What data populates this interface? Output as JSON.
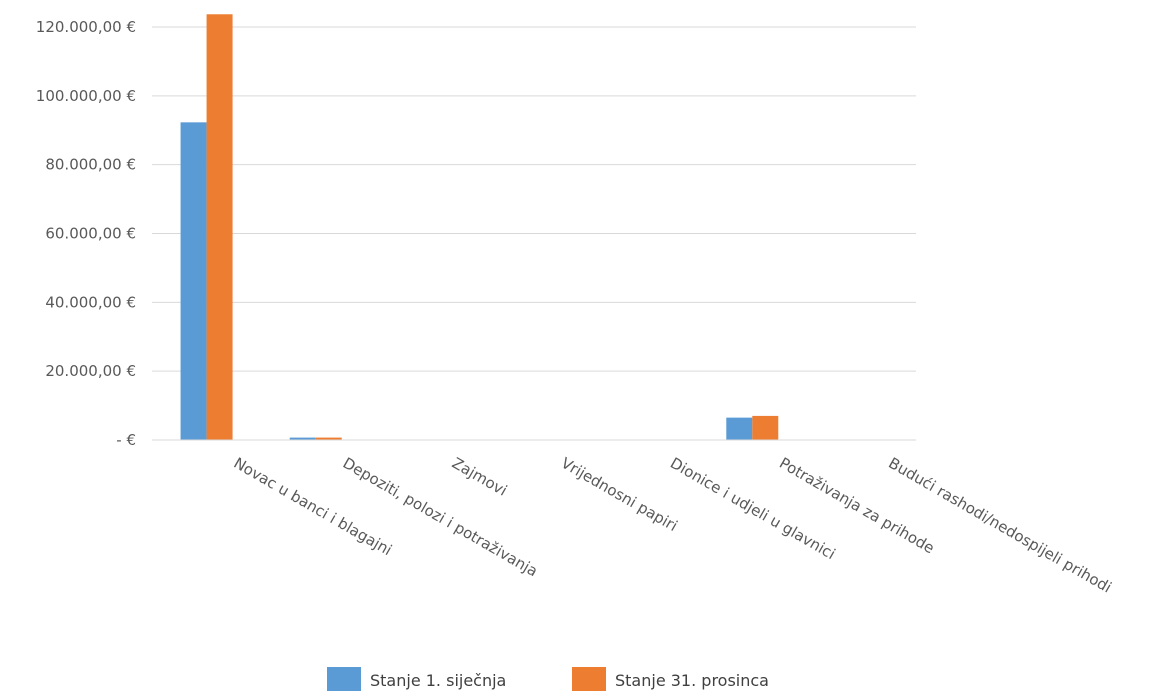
{
  "chart_data": {
    "type": "bar",
    "categories": [
      "Novac u banci i blagajni",
      "Depoziti, polozi i potraživanja",
      "Zajmovi",
      "Vrijednosni papiri",
      "Dionice i udjeli u glavnici",
      "Potraživanja za prihode",
      "Budući rashodi/nedospijeli prihodi"
    ],
    "series": [
      {
        "name": "Stanje 1. siječnja",
        "color": "#5B9BD5",
        "values": [
          92300,
          700,
          0,
          0,
          0,
          6500,
          0
        ]
      },
      {
        "name": "Stanje 31. prosinca",
        "color": "#ED7D31",
        "values": [
          123700,
          700,
          0,
          0,
          0,
          7000,
          0
        ]
      }
    ],
    "yticks": [
      "-  €",
      "20.000,00 €",
      "40.000,00 €",
      "60.000,00 €",
      "80.000,00 €",
      "100.000,00 €",
      "120.000,00 €"
    ],
    "ylim": [
      0,
      120000
    ],
    "grid": true,
    "legend_position": "bottom"
  }
}
